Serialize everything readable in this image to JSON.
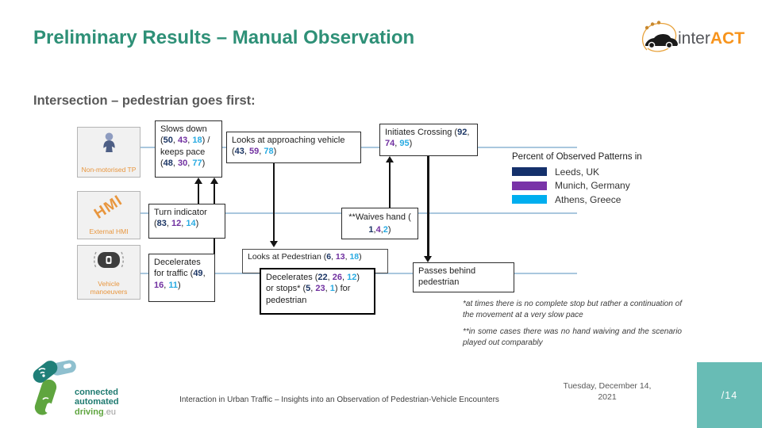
{
  "header": {
    "title": "Preliminary Results – Manual Observation",
    "logo": {
      "part1": "inter",
      "part2": "ACT"
    }
  },
  "subtitle": "Intersection – pedestrian goes first:",
  "colors": {
    "leeds": "#1B3564",
    "munich": "#7030A0",
    "athens": "#29ABE2",
    "title_teal": "#2E9077",
    "orange": "#E8963E",
    "page_teal": "#68BCB5"
  },
  "diagram": {
    "actors": [
      {
        "label": "Non-motorised TP"
      },
      {
        "label": "External HMI",
        "icon_text": "HMI"
      },
      {
        "label": "Vehicle manoeuvers"
      }
    ],
    "boxes": {
      "slows_down": {
        "values": {
          "slows_down": [
            50,
            43,
            18
          ],
          "keeps_pace": [
            48,
            30,
            77
          ]
        },
        "segments": [
          {
            "t": "Slows down ("
          },
          {
            "t": "50",
            "c": "l"
          },
          {
            "t": ", "
          },
          {
            "t": "43",
            "c": "m"
          },
          {
            "t": ", "
          },
          {
            "t": "18",
            "c": "a"
          },
          {
            "t": ") / keeps pace ("
          },
          {
            "t": "48",
            "c": "l"
          },
          {
            "t": ", "
          },
          {
            "t": "30",
            "c": "m"
          },
          {
            "t": ", "
          },
          {
            "t": "77",
            "c": "a"
          },
          {
            "t": ")"
          }
        ]
      },
      "looks_vehicle": {
        "values": [
          43,
          59,
          78
        ],
        "segments": [
          {
            "t": "Looks at approaching vehicle ("
          },
          {
            "t": "43",
            "c": "l"
          },
          {
            "t": ", "
          },
          {
            "t": "59",
            "c": "m"
          },
          {
            "t": ", "
          },
          {
            "t": "78",
            "c": "a"
          },
          {
            "t": ")"
          }
        ]
      },
      "initiates_crossing": {
        "values": [
          92,
          74,
          95
        ],
        "segments": [
          {
            "t": "Initiates Crossing ("
          },
          {
            "t": "92",
            "c": "l"
          },
          {
            "t": ", "
          },
          {
            "t": "74",
            "c": "m"
          },
          {
            "t": ", "
          },
          {
            "t": "95",
            "c": "a"
          },
          {
            "t": ")"
          }
        ]
      },
      "turn_indicator": {
        "values": [
          83,
          12,
          14
        ],
        "segments": [
          {
            "t": "Turn indicator ("
          },
          {
            "t": "83",
            "c": "l"
          },
          {
            "t": ", "
          },
          {
            "t": "12",
            "c": "m"
          },
          {
            "t": ", "
          },
          {
            "t": "14",
            "c": "a"
          },
          {
            "t": ")"
          }
        ]
      },
      "waives_hand": {
        "values": [
          1,
          4,
          2
        ],
        "segments": [
          {
            "t": "**Waives hand ("
          },
          {
            "t": "1",
            "c": "l"
          },
          {
            "t": ", "
          },
          {
            "t": "4",
            "c": "m"
          },
          {
            "t": ", "
          },
          {
            "t": "2",
            "c": "a"
          },
          {
            "t": ")"
          }
        ]
      },
      "decelerates_traffic": {
        "values": [
          49,
          16,
          11
        ],
        "segments": [
          {
            "t": "Decelerates for traffic ("
          },
          {
            "t": "49",
            "c": "l"
          },
          {
            "t": ", "
          },
          {
            "t": "16",
            "c": "m"
          },
          {
            "t": ", "
          },
          {
            "t": "11",
            "c": "a"
          },
          {
            "t": ")"
          }
        ]
      },
      "looks_pedestrian": {
        "values": [
          6,
          13,
          18
        ],
        "segments": [
          {
            "t": "Looks at Pedestrian ("
          },
          {
            "t": "6",
            "c": "l"
          },
          {
            "t": ", "
          },
          {
            "t": "13",
            "c": "m"
          },
          {
            "t": ", "
          },
          {
            "t": "18",
            "c": "a"
          },
          {
            "t": ")"
          }
        ]
      },
      "decelerates_stops": {
        "values": {
          "decelerates": [
            22,
            26,
            12
          ],
          "stops": [
            5,
            23,
            1
          ]
        },
        "segments": [
          {
            "t": "Decelerates ("
          },
          {
            "t": "22",
            "c": "l"
          },
          {
            "t": ", "
          },
          {
            "t": "26",
            "c": "m"
          },
          {
            "t": ", "
          },
          {
            "t": "12",
            "c": "a"
          },
          {
            "t": ") or stops* ("
          },
          {
            "t": "5",
            "c": "l"
          },
          {
            "t": ", "
          },
          {
            "t": "23",
            "c": "m"
          },
          {
            "t": ", "
          },
          {
            "t": "1",
            "c": "a"
          },
          {
            "t": ") for pedestrian"
          }
        ]
      },
      "passes_behind": {
        "segments": [
          {
            "t": "Passes behind pedestrian"
          }
        ]
      }
    },
    "legend": {
      "title": "Percent of Observed Patterns in",
      "items": [
        {
          "label": "Leeds, UK",
          "color": "#14306B"
        },
        {
          "label": "Munich, Germany",
          "color": "#7933A8"
        },
        {
          "label": "Athens, Greece",
          "color": "#00AEEF"
        }
      ]
    },
    "footnotes": [
      "*at times there is no complete stop but rather a continuation of the movement at a very slow pace",
      "**in some cases there was no hand waiving and the scenario played out comparably"
    ]
  },
  "footer": {
    "caption": "Interaction in Urban Traffic – Insights into an Observation of Pedestrian-Vehicle Encounters",
    "date_line1": "Tuesday, December 14,",
    "date_line2": "2021",
    "page_number": "/14",
    "cad_logo": {
      "line1": "connected",
      "line2": "automated",
      "line3": "driving",
      "line3_suffix": ".eu"
    }
  }
}
